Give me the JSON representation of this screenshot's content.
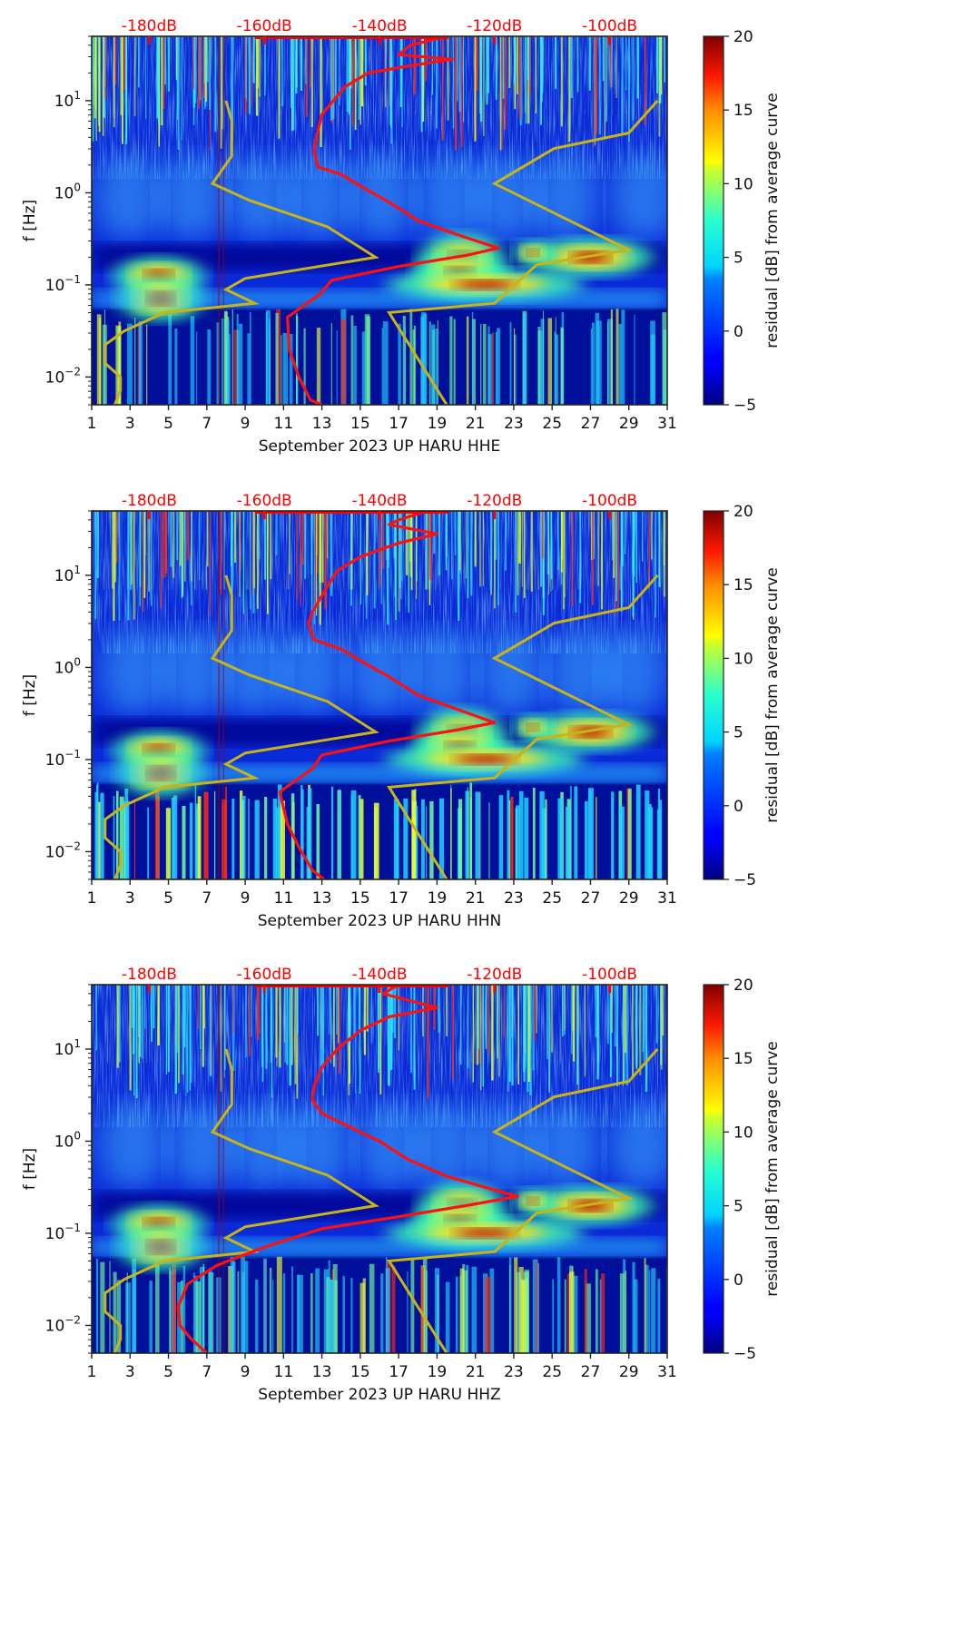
{
  "colors": {
    "db_axis": "#ff0000",
    "red_curve": "#ff1010",
    "yellow_curve": "#c8b418",
    "axis": "#222222"
  },
  "chart_data": [
    {
      "type": "heatmap",
      "title": "",
      "xlabel": "September 2023 UP HARU  HHE",
      "ylabel": "f [Hz]",
      "x_ticks": [
        "1",
        "3",
        "5",
        "7",
        "9",
        "11",
        "13",
        "15",
        "17",
        "19",
        "21",
        "23",
        "25",
        "27",
        "29",
        "31"
      ],
      "xlim": [
        1,
        31
      ],
      "y_ticks": [
        {
          "base": "10",
          "exp": "1",
          "value": 10
        },
        {
          "base": "10",
          "exp": "0",
          "value": 1
        },
        {
          "base": "10",
          "exp": "−1",
          "value": 0.1
        },
        {
          "base": "10",
          "exp": "−2",
          "value": 0.01
        }
      ],
      "ylim": [
        0.005,
        50
      ],
      "yscale": "log",
      "top_axis_ticks": [
        "-180dB",
        "-160dB",
        "-140dB",
        "-120dB",
        "-100dB"
      ],
      "top_axis_values": [
        -180,
        -160,
        -140,
        -120,
        -100
      ],
      "top_axis_range": [
        -190,
        -90
      ],
      "colorbar": {
        "label": "residual [dB] from average curve",
        "ticks": [
          "−5",
          "0",
          "5",
          "10",
          "15",
          "20"
        ],
        "range": [
          -5,
          20
        ],
        "colormap": "jet"
      },
      "series": [
        {
          "name": "red curve (mean PSD, dB)",
          "points": [
            [
              19.5,
              1.7
            ],
            [
              17.6,
              1.6
            ],
            [
              17.0,
              1.5
            ],
            [
              19.8,
              1.45
            ],
            [
              17.3,
              1.37
            ],
            [
              15.4,
              1.3
            ],
            [
              14.2,
              1.15
            ],
            [
              13.6,
              1.0
            ],
            [
              13.0,
              0.85
            ],
            [
              12.7,
              0.6
            ],
            [
              12.6,
              0.45
            ],
            [
              12.8,
              0.28
            ],
            [
              14.0,
              0.2
            ],
            [
              15.2,
              0.05
            ],
            [
              16.5,
              -0.1
            ],
            [
              18.0,
              -0.3
            ],
            [
              20.0,
              -0.45
            ],
            [
              22.2,
              -0.6
            ],
            [
              20.5,
              -0.68
            ],
            [
              17.0,
              -0.8
            ],
            [
              13.5,
              -0.95
            ],
            [
              12.9,
              -1.1
            ],
            [
              11.2,
              -1.35
            ],
            [
              11.3,
              -1.7
            ],
            [
              11.8,
              -2.0
            ],
            [
              12.4,
              -2.25
            ],
            [
              13.0,
              -2.3
            ]
          ]
        },
        {
          "name": "yellow curve",
          "points": [
            [
              8.0,
              1.0
            ],
            [
              8.3,
              0.78
            ],
            [
              8.3,
              0.4
            ],
            [
              7.3,
              0.1
            ],
            [
              9.2,
              -0.08
            ],
            [
              13.3,
              -0.37
            ],
            [
              15.8,
              -0.7
            ],
            [
              9.0,
              -0.93
            ],
            [
              8.0,
              -1.05
            ],
            [
              9.5,
              -1.2
            ],
            [
              4.8,
              -1.3
            ],
            [
              2.7,
              -1.5
            ],
            [
              1.7,
              -1.65
            ],
            [
              1.7,
              -1.85
            ],
            [
              2.5,
              -2.0
            ],
            [
              2.5,
              -2.15
            ],
            [
              2.2,
              -2.3
            ]
          ]
        },
        {
          "name": "yellow curve right",
          "points": [
            [
              30.5,
              1.0
            ],
            [
              29.0,
              0.65
            ],
            [
              25.1,
              0.48
            ],
            [
              22.0,
              0.1
            ],
            [
              29.0,
              -0.62
            ],
            [
              24.2,
              -0.78
            ],
            [
              22.0,
              -1.2
            ],
            [
              16.5,
              -1.3
            ],
            [
              19.5,
              -2.3
            ]
          ]
        }
      ]
    },
    {
      "type": "heatmap",
      "title": "",
      "xlabel": "September 2023 UP HARU  HHN",
      "ylabel": "f [Hz]",
      "x_ticks": [
        "1",
        "3",
        "5",
        "7",
        "9",
        "11",
        "13",
        "15",
        "17",
        "19",
        "21",
        "23",
        "25",
        "27",
        "29",
        "31"
      ],
      "xlim": [
        1,
        31
      ],
      "y_ticks": [
        {
          "base": "10",
          "exp": "1",
          "value": 10
        },
        {
          "base": "10",
          "exp": "0",
          "value": 1
        },
        {
          "base": "10",
          "exp": "−1",
          "value": 0.1
        },
        {
          "base": "10",
          "exp": "−2",
          "value": 0.01
        }
      ],
      "ylim": [
        0.005,
        50
      ],
      "yscale": "log",
      "top_axis_ticks": [
        "-180dB",
        "-160dB",
        "-140dB",
        "-120dB",
        "-100dB"
      ],
      "top_axis_values": [
        -180,
        -160,
        -140,
        -120,
        -100
      ],
      "top_axis_range": [
        -190,
        -90
      ],
      "colorbar": {
        "label": "residual [dB] from average curve",
        "ticks": [
          "−5",
          "0",
          "5",
          "10",
          "15",
          "20"
        ],
        "range": [
          -5,
          20
        ],
        "colormap": "jet"
      },
      "series": [
        {
          "name": "red curve (mean PSD, dB)",
          "points": [
            [
              18.5,
              1.7
            ],
            [
              17.0,
              1.6
            ],
            [
              16.5,
              1.55
            ],
            [
              19.0,
              1.45
            ],
            [
              17.0,
              1.35
            ],
            [
              15.0,
              1.2
            ],
            [
              13.8,
              1.05
            ],
            [
              13.2,
              0.85
            ],
            [
              12.5,
              0.6
            ],
            [
              12.3,
              0.48
            ],
            [
              12.6,
              0.3
            ],
            [
              14.0,
              0.2
            ],
            [
              15.2,
              0.05
            ],
            [
              16.5,
              -0.1
            ],
            [
              18.0,
              -0.3
            ],
            [
              20.0,
              -0.45
            ],
            [
              22.0,
              -0.6
            ],
            [
              20.0,
              -0.68
            ],
            [
              16.5,
              -0.8
            ],
            [
              13.0,
              -0.95
            ],
            [
              12.5,
              -1.1
            ],
            [
              10.8,
              -1.35
            ],
            [
              11.2,
              -1.7
            ],
            [
              11.8,
              -1.95
            ],
            [
              12.5,
              -2.2
            ],
            [
              13.1,
              -2.3
            ]
          ]
        },
        {
          "name": "yellow curve",
          "points": [
            [
              8.0,
              1.0
            ],
            [
              8.3,
              0.78
            ],
            [
              8.3,
              0.4
            ],
            [
              7.3,
              0.1
            ],
            [
              9.2,
              -0.08
            ],
            [
              13.3,
              -0.37
            ],
            [
              15.8,
              -0.7
            ],
            [
              9.0,
              -0.93
            ],
            [
              8.0,
              -1.05
            ],
            [
              9.5,
              -1.2
            ],
            [
              4.8,
              -1.3
            ],
            [
              2.7,
              -1.5
            ],
            [
              1.7,
              -1.65
            ],
            [
              1.7,
              -1.85
            ],
            [
              2.5,
              -2.0
            ],
            [
              2.5,
              -2.15
            ],
            [
              2.2,
              -2.3
            ]
          ]
        },
        {
          "name": "yellow curve right",
          "points": [
            [
              30.5,
              1.0
            ],
            [
              29.0,
              0.65
            ],
            [
              25.1,
              0.48
            ],
            [
              22.0,
              0.1
            ],
            [
              29.0,
              -0.62
            ],
            [
              24.2,
              -0.78
            ],
            [
              22.0,
              -1.2
            ],
            [
              16.5,
              -1.3
            ],
            [
              19.5,
              -2.3
            ]
          ]
        }
      ]
    },
    {
      "type": "heatmap",
      "title": "",
      "xlabel": "September 2023 UP HARU  HHZ",
      "ylabel": "f [Hz]",
      "x_ticks": [
        "1",
        "3",
        "5",
        "7",
        "9",
        "11",
        "13",
        "15",
        "17",
        "19",
        "21",
        "23",
        "25",
        "27",
        "29",
        "31"
      ],
      "xlim": [
        1,
        31
      ],
      "y_ticks": [
        {
          "base": "10",
          "exp": "1",
          "value": 10
        },
        {
          "base": "10",
          "exp": "0",
          "value": 1
        },
        {
          "base": "10",
          "exp": "−1",
          "value": 0.1
        },
        {
          "base": "10",
          "exp": "−2",
          "value": 0.01
        }
      ],
      "ylim": [
        0.005,
        50
      ],
      "yscale": "log",
      "top_axis_ticks": [
        "-180dB",
        "-160dB",
        "-140dB",
        "-120dB",
        "-100dB"
      ],
      "top_axis_values": [
        -180,
        -160,
        -140,
        -120,
        -100
      ],
      "top_axis_range": [
        -190,
        -90
      ],
      "colorbar": {
        "label": "residual [dB] from average curve",
        "ticks": [
          "−5",
          "0",
          "5",
          "10",
          "15",
          "20"
        ],
        "range": [
          -5,
          20
        ],
        "colormap": "jet"
      },
      "series": [
        {
          "name": "red curve (mean PSD, dB)",
          "points": [
            [
              17.0,
              1.7
            ],
            [
              16.2,
              1.6
            ],
            [
              19.0,
              1.45
            ],
            [
              16.5,
              1.35
            ],
            [
              15.0,
              1.2
            ],
            [
              13.8,
              1.0
            ],
            [
              13.0,
              0.8
            ],
            [
              12.6,
              0.6
            ],
            [
              12.5,
              0.45
            ],
            [
              13.0,
              0.3
            ],
            [
              14.5,
              0.15
            ],
            [
              16.0,
              0.0
            ],
            [
              17.5,
              -0.2
            ],
            [
              19.5,
              -0.38
            ],
            [
              21.5,
              -0.5
            ],
            [
              23.2,
              -0.6
            ],
            [
              20.5,
              -0.7
            ],
            [
              17.0,
              -0.82
            ],
            [
              13.0,
              -0.95
            ],
            [
              10.0,
              -1.15
            ],
            [
              7.5,
              -1.35
            ],
            [
              6.0,
              -1.55
            ],
            [
              5.5,
              -1.8
            ],
            [
              5.6,
              -2.0
            ],
            [
              6.2,
              -2.15
            ],
            [
              7.0,
              -2.3
            ]
          ]
        },
        {
          "name": "yellow curve",
          "points": [
            [
              8.0,
              1.0
            ],
            [
              8.3,
              0.78
            ],
            [
              8.3,
              0.4
            ],
            [
              7.3,
              0.1
            ],
            [
              9.2,
              -0.08
            ],
            [
              13.3,
              -0.37
            ],
            [
              15.8,
              -0.7
            ],
            [
              9.0,
              -0.93
            ],
            [
              8.0,
              -1.05
            ],
            [
              9.5,
              -1.2
            ],
            [
              4.8,
              -1.3
            ],
            [
              2.7,
              -1.5
            ],
            [
              1.7,
              -1.65
            ],
            [
              1.7,
              -1.85
            ],
            [
              2.5,
              -2.0
            ],
            [
              2.5,
              -2.15
            ],
            [
              2.2,
              -2.3
            ]
          ]
        },
        {
          "name": "yellow curve right",
          "points": [
            [
              30.5,
              1.0
            ],
            [
              29.0,
              0.65
            ],
            [
              25.1,
              0.48
            ],
            [
              22.0,
              0.1
            ],
            [
              29.0,
              -0.62
            ],
            [
              24.2,
              -0.78
            ],
            [
              22.0,
              -1.2
            ],
            [
              16.5,
              -1.3
            ],
            [
              19.5,
              -2.3
            ]
          ]
        }
      ]
    }
  ]
}
